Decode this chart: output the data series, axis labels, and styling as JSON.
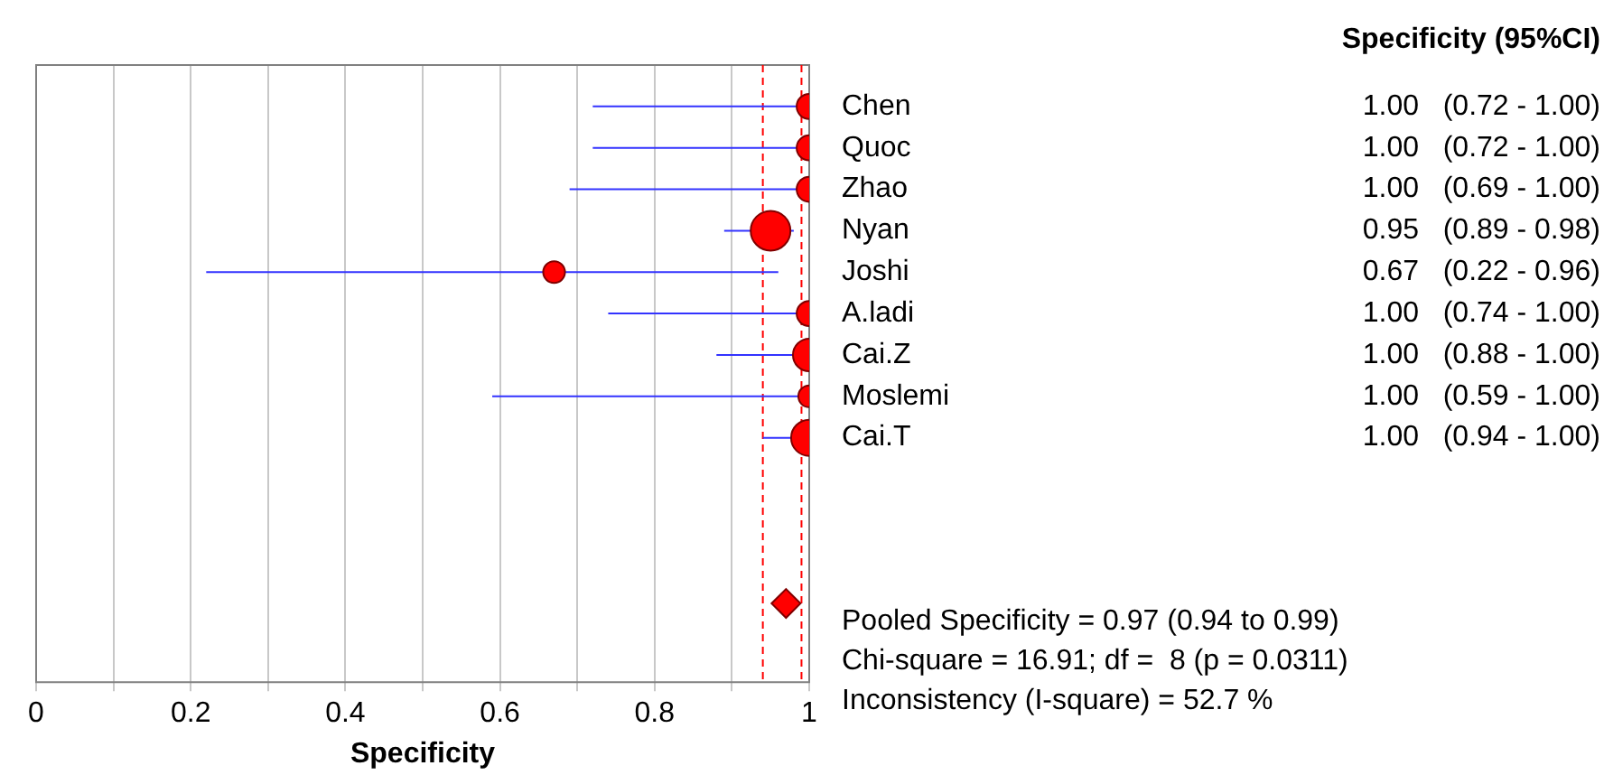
{
  "chart_data": {
    "type": "bubble",
    "orientation": "horizontal",
    "xlabel": "Specificity",
    "categories": [
      "Chen",
      "Quoc",
      "Zhao",
      "Nyan",
      "Joshi",
      "A.ladi",
      "Cai.Z",
      "Moslemi",
      "Cai.T",
      null,
      null,
      null,
      null
    ],
    "series": [
      {
        "color": "#ff0000",
        "values": [
          1.0,
          1.0,
          1.0,
          0.95,
          0.67,
          1.0,
          1.0,
          1.0,
          1.0,
          null,
          null,
          null,
          null
        ],
        "sizes": [
          0.4,
          0.4,
          0.4,
          1,
          0.3,
          0.4,
          0.67,
          0.3,
          0.83,
          null,
          null,
          null,
          null
        ],
        "errors": [
          [
            0.72,
            1.0
          ],
          [
            0.72,
            1.0
          ],
          [
            0.69,
            1.0
          ],
          [
            0.89,
            0.98
          ],
          [
            0.22,
            0.96
          ],
          [
            0.74,
            1.0
          ],
          [
            0.88,
            1.0
          ],
          [
            0.59,
            1.0
          ],
          [
            0.94,
            1.0
          ],
          null,
          null,
          null,
          null
        ],
        "value_labels": [
          "1.00   (0.72 - 1.00)",
          "1.00   (0.72 - 1.00)",
          "1.00   (0.69 - 1.00)",
          "0.95   (0.89 - 0.98)",
          "0.67   (0.22 - 0.96)",
          "1.00   (0.74 - 1.00)",
          "1.00   (0.88 - 1.00)",
          "1.00   (0.59 - 1.00)",
          "1.00   (0.94 - 1.00)",
          null,
          null,
          null,
          null
        ]
      },
      {
        "type": "scatter",
        "marker": "diamond",
        "color": "#ff0000",
        "values": [
          null,
          null,
          null,
          null,
          null,
          null,
          null,
          null,
          null,
          null,
          null,
          null,
          0.97
        ]
      }
    ],
    "xlim": [
      0,
      1
    ],
    "xticks": [
      0,
      {
        "value": 0.1,
        "label": null
      },
      0.2,
      {
        "value": 0.3,
        "label": null
      },
      0.4,
      {
        "value": 0.5,
        "label": null
      },
      0.6,
      {
        "value": 0.7,
        "label": null
      },
      0.8,
      {
        "value": 0.9,
        "label": null
      },
      1
    ],
    "grid": "x",
    "legend": false,
    "ref_lines": [
      {
        "axis": "x",
        "value": 0.94,
        "color": "#ff0000",
        "line_style": "dashed"
      },
      {
        "axis": "x",
        "value": 0.99,
        "color": "#ff0000",
        "line_style": "dashed"
      }
    ],
    "annotations": [
      "Specificity (95%CI)",
      "Pooled Specificity = 0.97 (0.94 to 0.99)",
      "Chi-square = 16.91; df =  8 (p = 0.0311)",
      "Inconsistency (I-square) = 52.7 %"
    ]
  }
}
